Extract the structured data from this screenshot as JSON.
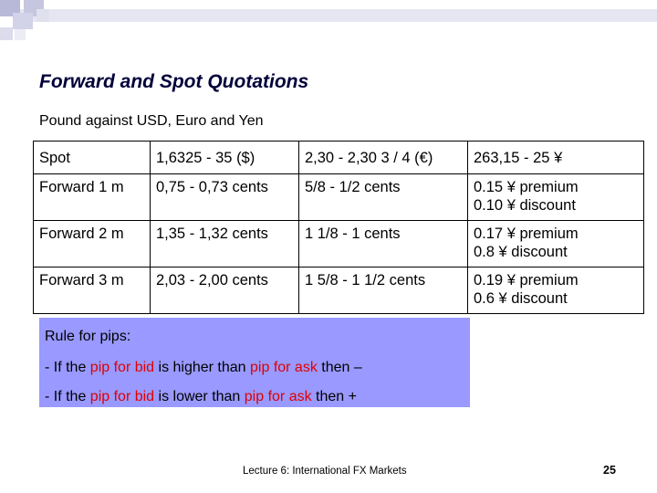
{
  "slide": {
    "title": "Forward and Spot Quotations",
    "subtitle": "Pound against USD, Euro and Yen"
  },
  "table": {
    "rows": [
      {
        "label": "Spot",
        "usd": "1,6325 - 35 ($)",
        "euro": "2,30 - 2,30 3 / 4 (€)",
        "yen": [
          "263,15 - 25 ¥"
        ]
      },
      {
        "label": "Forward 1 m",
        "usd": "0,75 - 0,73 cents",
        "euro": "5/8 - 1/2 cents",
        "yen": [
          "0.15 ¥ premium",
          "0.10 ¥ discount"
        ]
      },
      {
        "label": "Forward 2 m",
        "usd": "1,35 - 1,32 cents",
        "euro": "1 1/8 - 1 cents",
        "yen": [
          "0.17 ¥ premium",
          "0.8 ¥ discount"
        ]
      },
      {
        "label": "Forward 3 m",
        "usd": "2,03 - 2,00 cents",
        "euro": "1 5/8 - 1 1/2 cents",
        "yen": [
          "0.19 ¥ premium",
          "0.6 ¥ discount"
        ]
      }
    ]
  },
  "rule_box": {
    "heading": "Rule for pips:",
    "line1": {
      "p1": "- If the ",
      "p2": "pip for bid",
      "p3": " is higher than ",
      "p4": "pip for ask",
      "p5": " then –"
    },
    "line2": {
      "p1": "- If the ",
      "p2": "pip for bid",
      "p3": " is lower than ",
      "p4": "pip for ask",
      "p5": " then +"
    }
  },
  "footer": {
    "text": "Lecture 6: International FX Markets",
    "page_number": "25"
  },
  "colors": {
    "title": "#00003a",
    "rule_box_bg": "#9999ff",
    "highlight_red": "#e00000"
  }
}
